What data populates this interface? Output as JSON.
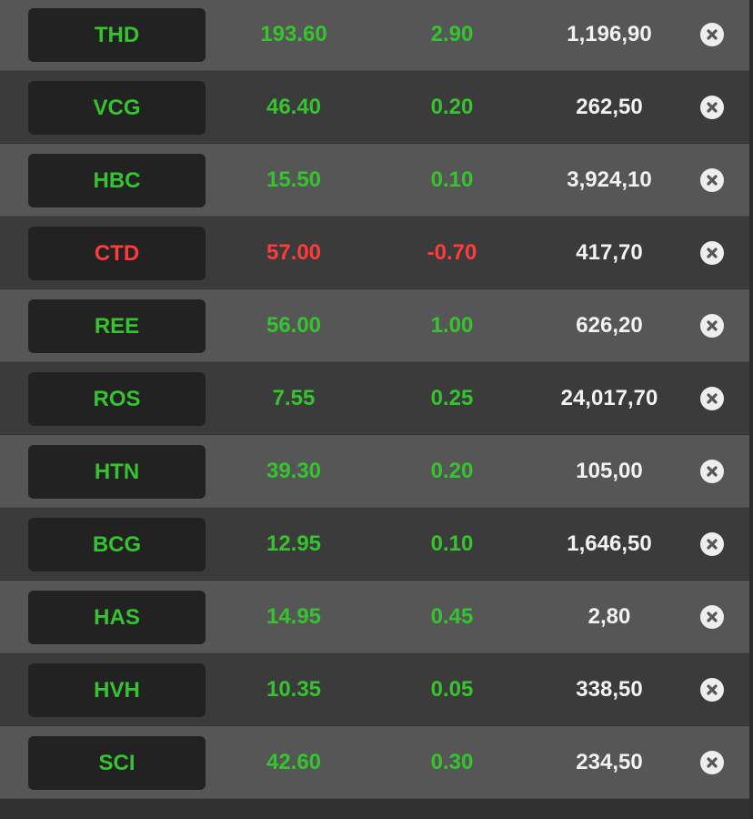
{
  "colors": {
    "up": "#35c42f",
    "down": "#ff3b3b",
    "volume": "#f2f2f2",
    "ticker_bg": "#222222"
  },
  "remove_icon": "close-circle-icon",
  "rows": [
    {
      "symbol": "THD",
      "price": "193.60",
      "change": "2.90",
      "volume": "1,196,90",
      "direction": "up"
    },
    {
      "symbol": "VCG",
      "price": "46.40",
      "change": "0.20",
      "volume": "262,50",
      "direction": "up"
    },
    {
      "symbol": "HBC",
      "price": "15.50",
      "change": "0.10",
      "volume": "3,924,10",
      "direction": "up"
    },
    {
      "symbol": "CTD",
      "price": "57.00",
      "change": "-0.70",
      "volume": "417,70",
      "direction": "down"
    },
    {
      "symbol": "REE",
      "price": "56.00",
      "change": "1.00",
      "volume": "626,20",
      "direction": "up"
    },
    {
      "symbol": "ROS",
      "price": "7.55",
      "change": "0.25",
      "volume": "24,017,70",
      "direction": "up"
    },
    {
      "symbol": "HTN",
      "price": "39.30",
      "change": "0.20",
      "volume": "105,00",
      "direction": "up"
    },
    {
      "symbol": "BCG",
      "price": "12.95",
      "change": "0.10",
      "volume": "1,646,50",
      "direction": "up"
    },
    {
      "symbol": "HAS",
      "price": "14.95",
      "change": "0.45",
      "volume": "2,80",
      "direction": "up"
    },
    {
      "symbol": "HVH",
      "price": "10.35",
      "change": "0.05",
      "volume": "338,50",
      "direction": "up"
    },
    {
      "symbol": "SCI",
      "price": "42.60",
      "change": "0.30",
      "volume": "234,50",
      "direction": "up"
    }
  ]
}
